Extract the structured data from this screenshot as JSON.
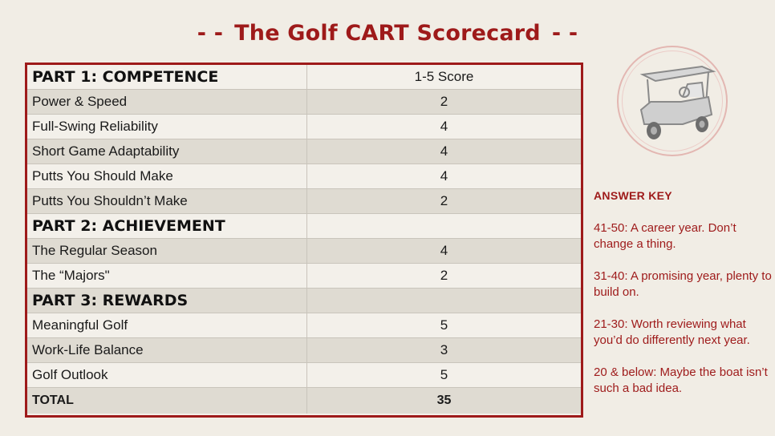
{
  "title": {
    "left_dash": "- -",
    "text": "The Golf CART Scorecard",
    "right_dash": "- -"
  },
  "scorecard": {
    "rows": [
      {
        "label": "PART 1: COMPETENCE",
        "score": "1-5 Score",
        "kind": "part"
      },
      {
        "label": "Power & Speed",
        "score": "2",
        "kind": "item"
      },
      {
        "label": "Full-Swing Reliability",
        "score": "4",
        "kind": "item"
      },
      {
        "label": "Short Game Adaptability",
        "score": "4",
        "kind": "item"
      },
      {
        "label": "Putts You Should Make",
        "score": "4",
        "kind": "item"
      },
      {
        "label": "Putts You Shouldn’t Make",
        "score": "2",
        "kind": "item"
      },
      {
        "label": "PART 2: ACHIEVEMENT",
        "score": "",
        "kind": "part"
      },
      {
        "label": "The Regular Season",
        "score": "4",
        "kind": "item"
      },
      {
        "label": "The “Majors\"",
        "score": "2",
        "kind": "item"
      },
      {
        "label": "PART 3: REWARDS",
        "score": "",
        "kind": "part"
      },
      {
        "label": "Meaningful Golf",
        "score": "5",
        "kind": "item"
      },
      {
        "label": "Work-Life Balance",
        "score": "3",
        "kind": "item"
      },
      {
        "label": "Golf Outlook",
        "score": "5",
        "kind": "item"
      },
      {
        "label": "TOTAL",
        "score": "35",
        "kind": "total"
      }
    ]
  },
  "answer_key": {
    "heading": "ANSWER KEY",
    "items": [
      "41-50: A career year. Don’t change a thing.",
      "31-40: A promising year, plenty to build on.",
      "21-30: Worth reviewing what you’d do differently next year.",
      "20 & below: Maybe the boat isn’t such a bad idea."
    ]
  },
  "colors": {
    "accent": "#9e1a1a",
    "background": "#f1ede5",
    "row_shade": "#dfdbd2",
    "badge_ring": "#e3b7b2"
  },
  "icons": {
    "badge": "golf-cart-icon"
  }
}
